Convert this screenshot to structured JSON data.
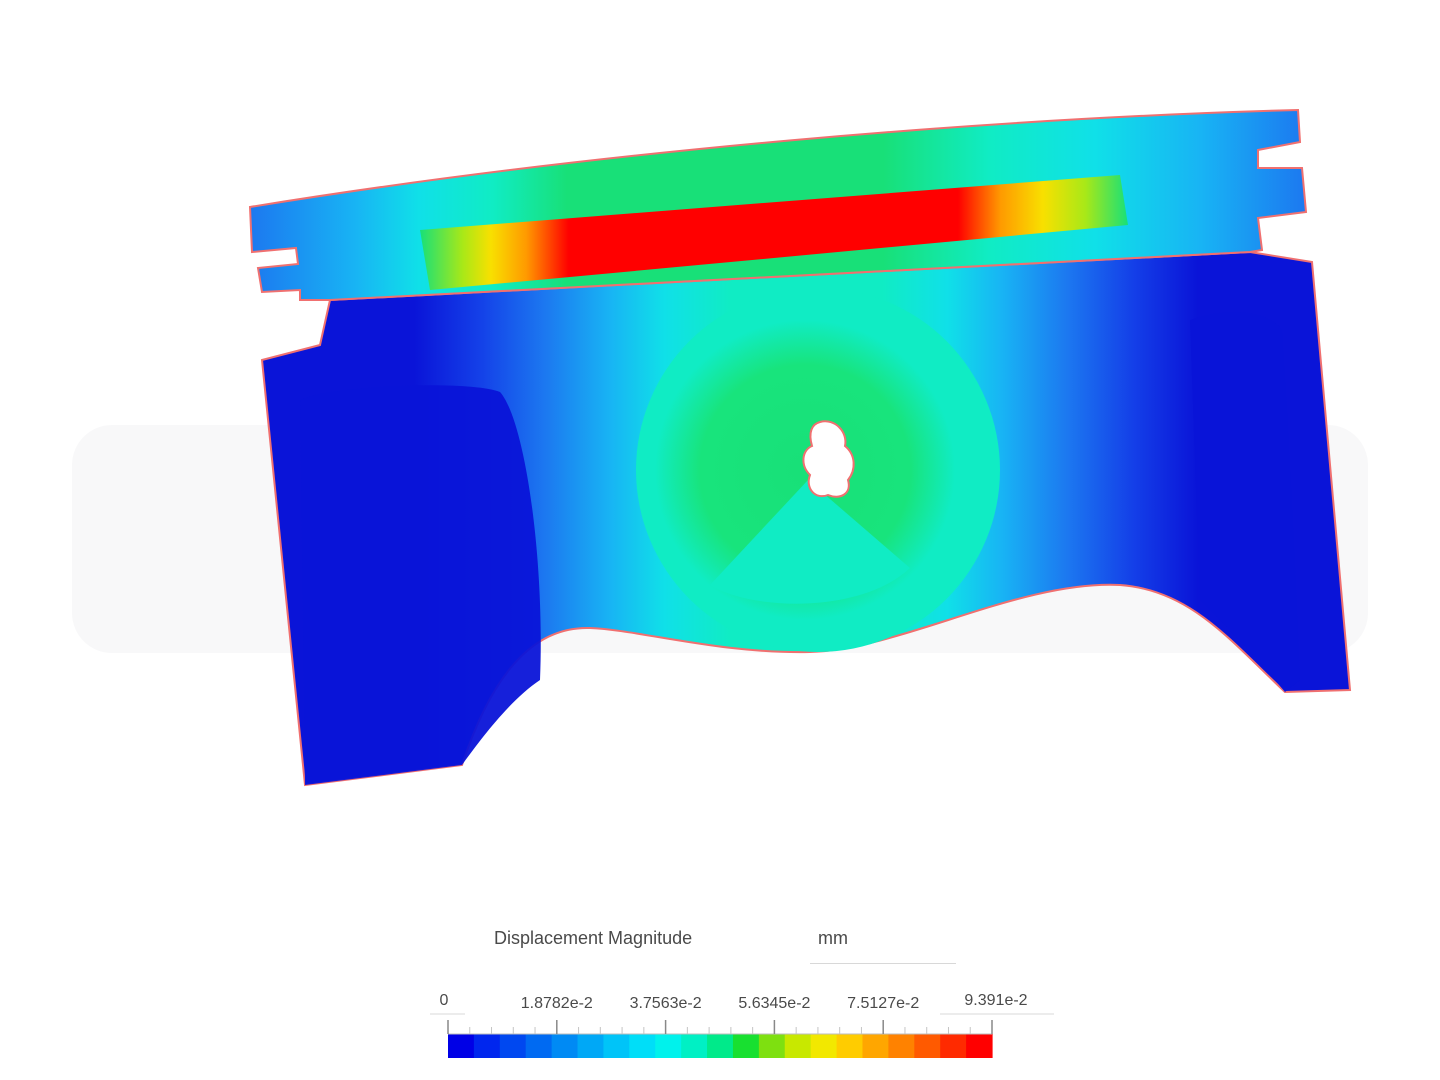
{
  "legend": {
    "title": "Displacement Magnitude",
    "unit": "mm",
    "min_label": "0",
    "tick_labels": [
      "1.8782e-2",
      "3.7563e-2",
      "5.6345e-2",
      "7.5127e-2",
      "9.391e-2"
    ],
    "min_value": 0,
    "max_value": 0.09391,
    "colors": [
      "#0000e6",
      "#0026ee",
      "#0048f0",
      "#006af2",
      "#008af4",
      "#00a8f6",
      "#00c4f8",
      "#00def8",
      "#00f2ec",
      "#00f0c4",
      "#00ea8a",
      "#18e030",
      "#7ee010",
      "#c8e800",
      "#f2e800",
      "#ffcc00",
      "#ffa600",
      "#ff8200",
      "#ff5a00",
      "#ff2a00",
      "#ff0000"
    ]
  },
  "model": {
    "colors": {
      "deep_blue": "#0a14d8",
      "blue": "#1440e8",
      "mid_blue": "#1c78f0",
      "light_blue": "#18b4f4",
      "cyan": "#10e0e8",
      "aqua": "#10ecc4",
      "green": "#18e078",
      "yellow_green": "#a8e818",
      "yellow": "#f8e000",
      "orange": "#ff9a00",
      "red": "#ff0000",
      "outline": "#f07070"
    }
  }
}
